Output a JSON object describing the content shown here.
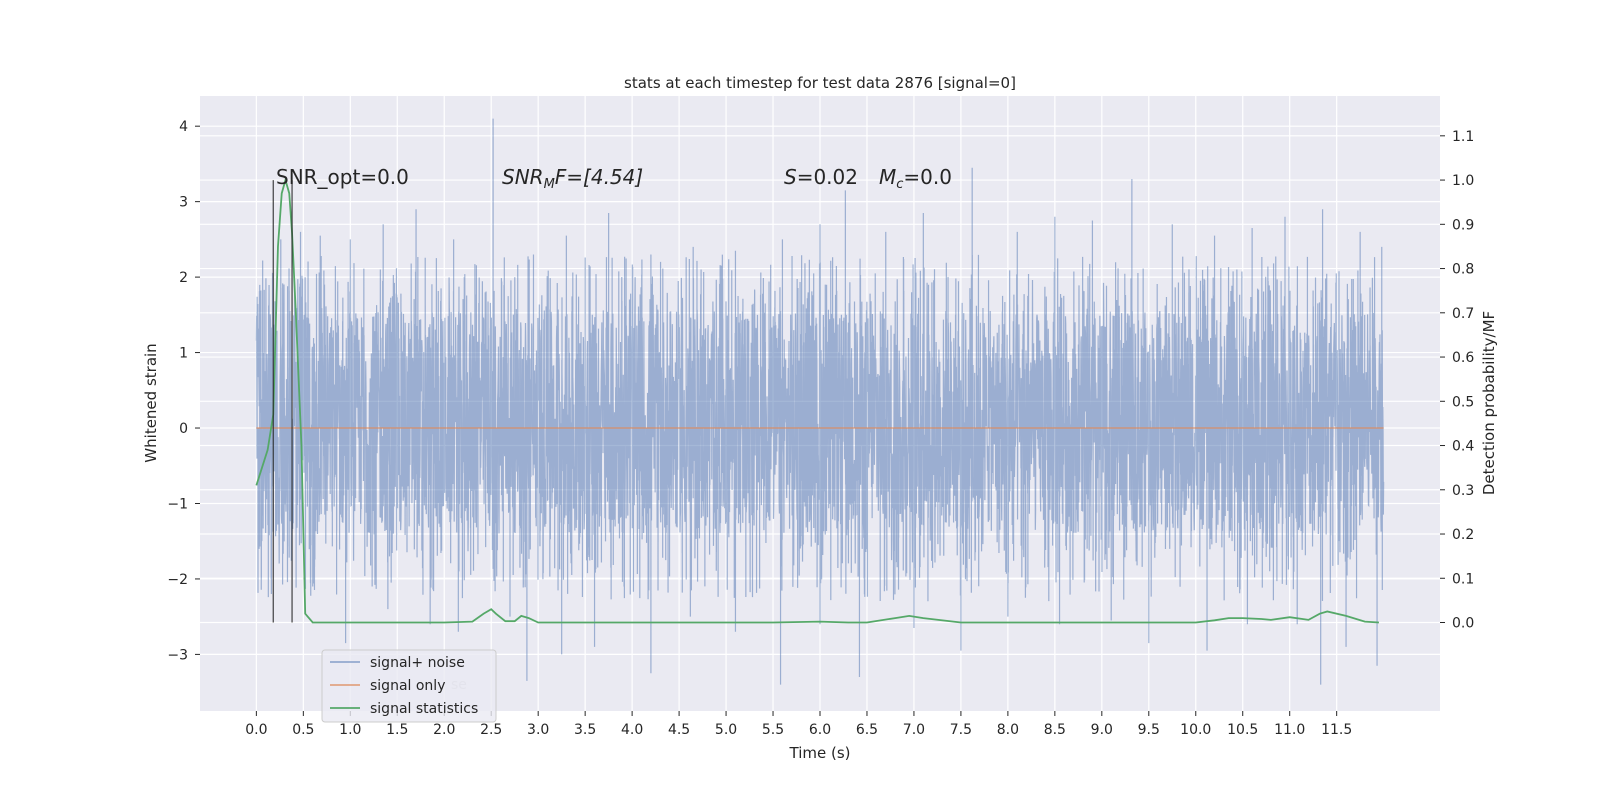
{
  "chart_data": {
    "type": "line",
    "title": "stats at each timestep for test data 2876 [signal=0]",
    "xlabel": "Time (s)",
    "ylabel": "Whitened strain",
    "y2label": "Detection probability/MF",
    "xlim": [
      -0.6,
      12.6
    ],
    "ylim": [
      -3.75,
      4.4
    ],
    "y2lim": [
      -0.2,
      1.19
    ],
    "x_ticks": [
      "0.0",
      "0.5",
      "1.0",
      "1.5",
      "2.0",
      "2.5",
      "3.0",
      "3.5",
      "4.0",
      "4.5",
      "5.0",
      "5.5",
      "6.0",
      "6.5",
      "7.0",
      "7.5",
      "8.0",
      "8.5",
      "9.0",
      "9.5",
      "10.0",
      "10.5",
      "11.0",
      "11.5"
    ],
    "y_ticks": [
      -3,
      -2,
      -1,
      0,
      1,
      2,
      3,
      4
    ],
    "y2_ticks": [
      "0.0",
      "0.1",
      "0.2",
      "0.3",
      "0.4",
      "0.5",
      "0.6",
      "0.7",
      "0.8",
      "0.9",
      "1.0",
      "1.1"
    ],
    "grid": true,
    "legend_placement": "lower-left",
    "background": "#eaeaf2",
    "annotations": {
      "snr_opt": "SNR_opt=0.0",
      "snr_mf_base": "SNR",
      "snr_mf_sub": "M",
      "snr_mf_rest": "F=[4.54]",
      "s_label": "S",
      "s_value": "=0.02",
      "mc_label": "M",
      "mc_sub": "c",
      "mc_value": "=0.0"
    },
    "vertical_markers": [
      0.18,
      0.38
    ],
    "series": [
      {
        "name": "signal+ noise",
        "color": "#4c72b0",
        "axis": "left",
        "t_range": [
          0.0,
          12.0
        ],
        "band_core": [
          -1.4,
          1.55
        ],
        "peaks": [
          [
            0.26,
            2.5
          ],
          [
            0.47,
            2.6
          ],
          [
            0.68,
            2.55
          ],
          [
            1.0,
            2.5
          ],
          [
            1.35,
            2.7
          ],
          [
            1.7,
            2.9
          ],
          [
            2.1,
            2.5
          ],
          [
            2.52,
            4.1
          ],
          [
            2.95,
            2.3
          ],
          [
            3.3,
            2.55
          ],
          [
            3.75,
            2.85
          ],
          [
            4.2,
            2.3
          ],
          [
            4.65,
            2.4
          ],
          [
            5.1,
            2.35
          ],
          [
            5.6,
            2.5
          ],
          [
            6.0,
            2.7
          ],
          [
            6.27,
            3.15
          ],
          [
            6.7,
            2.6
          ],
          [
            7.1,
            2.85
          ],
          [
            7.62,
            3.45
          ],
          [
            8.1,
            2.6
          ],
          [
            8.5,
            2.8
          ],
          [
            8.9,
            2.75
          ],
          [
            9.32,
            3.3
          ],
          [
            9.75,
            2.7
          ],
          [
            10.2,
            2.55
          ],
          [
            10.6,
            2.65
          ],
          [
            10.95,
            2.8
          ],
          [
            11.35,
            2.9
          ],
          [
            11.75,
            2.6
          ],
          [
            11.98,
            2.4
          ]
        ],
        "troughs": [
          [
            0.16,
            -2.2
          ],
          [
            0.6,
            -2.1
          ],
          [
            0.95,
            -2.85
          ],
          [
            1.4,
            -2.4
          ],
          [
            1.85,
            -2.6
          ],
          [
            2.15,
            -2.7
          ],
          [
            2.7,
            -2.5
          ],
          [
            2.88,
            -3.35
          ],
          [
            3.25,
            -3.0
          ],
          [
            3.6,
            -2.9
          ],
          [
            4.2,
            -3.25
          ],
          [
            4.62,
            -2.5
          ],
          [
            5.1,
            -2.7
          ],
          [
            5.58,
            -3.4
          ],
          [
            6.0,
            -2.6
          ],
          [
            6.42,
            -3.3
          ],
          [
            7.0,
            -2.65
          ],
          [
            7.5,
            -2.95
          ],
          [
            8.0,
            -2.5
          ],
          [
            8.55,
            -2.6
          ],
          [
            9.1,
            -2.55
          ],
          [
            9.5,
            -2.85
          ],
          [
            10.12,
            -2.95
          ],
          [
            10.55,
            -2.6
          ],
          [
            11.08,
            -2.6
          ],
          [
            11.33,
            -3.4
          ],
          [
            11.6,
            -2.9
          ],
          [
            11.93,
            -3.15
          ]
        ]
      },
      {
        "name": "signal only",
        "color": "#dd8452",
        "axis": "left",
        "x": [
          0.0,
          12.0
        ],
        "y": [
          0.0,
          0.0
        ]
      },
      {
        "name": "signal statistics",
        "color": "#55a868",
        "axis": "right",
        "x": [
          0.0,
          0.12,
          0.18,
          0.23,
          0.27,
          0.31,
          0.35,
          0.38,
          0.42,
          0.48,
          0.52,
          0.6,
          1.0,
          1.5,
          2.0,
          2.3,
          2.42,
          2.5,
          2.55,
          2.65,
          2.75,
          2.82,
          2.9,
          3.0,
          3.5,
          4.0,
          5.0,
          5.5,
          6.0,
          6.3,
          6.5,
          6.8,
          6.95,
          7.1,
          7.5,
          8.0,
          9.0,
          10.0,
          10.2,
          10.35,
          10.5,
          10.7,
          10.8,
          11.0,
          11.2,
          11.32,
          11.4,
          11.6,
          11.8,
          11.95
        ],
        "y": [
          0.31,
          0.39,
          0.47,
          0.85,
          0.97,
          1.0,
          0.97,
          0.88,
          0.7,
          0.4,
          0.02,
          0.0,
          0.0,
          0.0,
          0.0,
          0.002,
          0.02,
          0.03,
          0.02,
          0.003,
          0.003,
          0.015,
          0.01,
          0.0,
          0.0,
          0.0,
          0.0,
          0.0,
          0.002,
          0.0,
          0.0,
          0.01,
          0.015,
          0.01,
          0.0,
          0.0,
          0.0,
          0.0,
          0.005,
          0.01,
          0.01,
          0.008,
          0.006,
          0.012,
          0.006,
          0.02,
          0.025,
          0.015,
          0.002,
          0.0
        ]
      }
    ],
    "legend_overlap_text": "se"
  }
}
